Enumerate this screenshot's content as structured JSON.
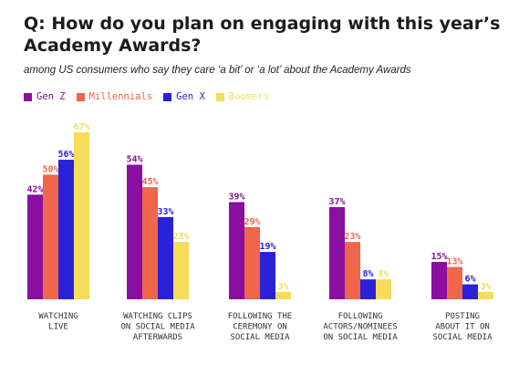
{
  "chart_data": {
    "type": "bar",
    "title": "Q: How do you plan on engaging with this year’s Academy Awards?",
    "subtitle": "among US consumers who say they care ‘a bit’ or ‘a lot’ about the Academy Awards",
    "categories": [
      [
        "WATCHING",
        "LIVE"
      ],
      [
        "WATCHING CLIPS",
        "ON SOCIAL MEDIA",
        "AFTERWARDS"
      ],
      [
        "FOLLOWING THE",
        "CEREMONY ON",
        "SOCIAL MEDIA"
      ],
      [
        "FOLLOWING",
        "ACTORS/NOMINEES",
        "ON SOCIAL MEDIA"
      ],
      [
        "POSTING",
        "ABOUT IT ON",
        "SOCIAL MEDIA"
      ]
    ],
    "series": [
      {
        "name": "Gen Z",
        "color": "#8a0fa0",
        "values": [
          42,
          54,
          39,
          37,
          15
        ]
      },
      {
        "name": "Millennials",
        "color": "#f0664a",
        "values": [
          50,
          45,
          29,
          23,
          13
        ]
      },
      {
        "name": "Gen X",
        "color": "#2a22d8",
        "values": [
          56,
          33,
          19,
          8,
          6
        ]
      },
      {
        "name": "Boomers",
        "color": "#f5dc5a",
        "values": [
          67,
          23,
          3,
          8,
          3
        ]
      }
    ],
    "value_suffix": "%",
    "ylim": [
      0,
      67
    ],
    "legend_position": "top-left",
    "grid": false
  }
}
